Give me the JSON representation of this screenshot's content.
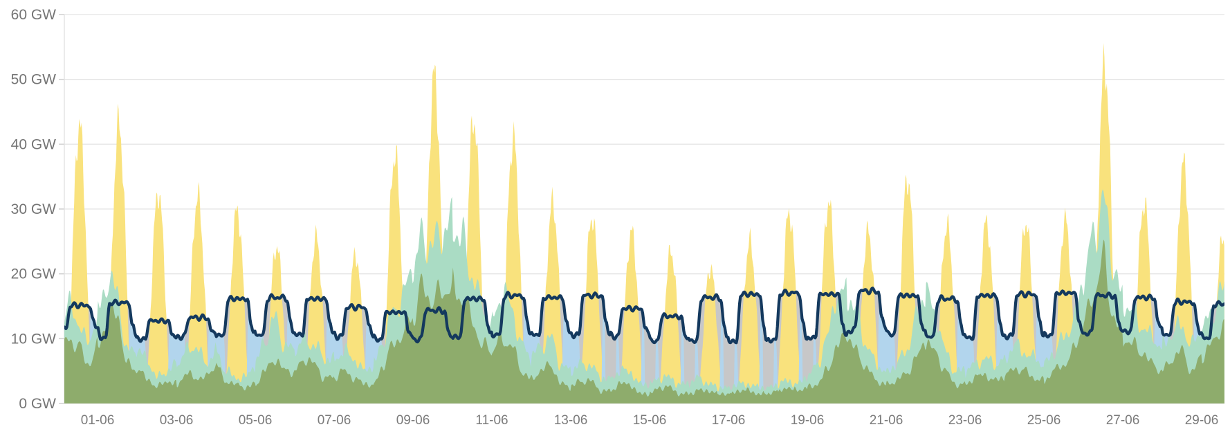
{
  "chart_data": {
    "type": "area",
    "title": "",
    "unit": "GW",
    "ylabel": "",
    "xlabel": "",
    "ylim": [
      0,
      60
    ],
    "grid": "horizontal",
    "legend": "none visible",
    "y_tick_labels": [
      "0 GW",
      "10 GW",
      "20 GW",
      "30 GW",
      "40 GW",
      "50 GW",
      "60 GW"
    ],
    "x_tick_labels": [
      "01-06",
      "03-06",
      "05-06",
      "07-06",
      "09-06",
      "11-06",
      "13-06",
      "15-06",
      "17-06",
      "19-06",
      "21-06",
      "23-06",
      "25-06",
      "27-06",
      "29-06"
    ],
    "x_tick_interval_days": 2,
    "time_span": {
      "start_date": "31-05",
      "start_hour": 4,
      "end_date": "29-06",
      "end_hour": 14
    },
    "series_meta": [
      {
        "id": "yellow_area",
        "desc": "daily solar-shaped bell peaks from 0 GW",
        "color": "#F9E27D"
      },
      {
        "id": "teal_area",
        "desc": "wind-like variable area from 0 GW",
        "color": "#AADCC4"
      },
      {
        "id": "olive_area",
        "desc": "smaller green area drawn in front of teal",
        "color": "#8EAC6C"
      },
      {
        "id": "blue_area",
        "desc": "night-time fill reaching up to the navy line",
        "color": "#B2D5ED"
      },
      {
        "id": "gray_fill",
        "desc": "area under navy line, visible at dawn/dusk and on mid-June nights",
        "color": "#C7C7C8"
      },
      {
        "id": "navy_line",
        "desc": "load-like line, day plateau / night trough",
        "color": "#14395E"
      }
    ],
    "colors": {
      "yellow": "#F9E27D",
      "teal": "#AADCC4",
      "olive": "#8EAC6C",
      "blue": "#B2D5ED",
      "gray": "#C7C7C8",
      "navy": "#14395E",
      "grid": "#E4E4E4",
      "axis": "#E0E0E0",
      "tick": "#CFCFCF",
      "label": "#757575"
    },
    "gray_gap_nights": [
      "13-06",
      "14-06",
      "15-06",
      "16-06",
      "17-06",
      "18-06"
    ],
    "days": [
      {
        "date": "31-05",
        "solar_peak": 43.0,
        "wind": [
          10,
          15,
          13,
          9
        ],
        "green": [
          7,
          10,
          9,
          6
        ],
        "line": [
          11.5,
          15.3
        ]
      },
      {
        "date": "01-06",
        "solar_peak": 43.2,
        "wind": [
          14,
          19,
          17,
          8
        ],
        "green": [
          9,
          13,
          14,
          6
        ],
        "line": [
          10.0,
          15.7
        ]
      },
      {
        "date": "02-06",
        "solar_peak": 32.6,
        "wind": [
          8,
          7,
          4,
          5
        ],
        "green": [
          5,
          4,
          2.5,
          3.5
        ],
        "line": [
          9.7,
          12.9
        ]
      },
      {
        "date": "03-06",
        "solar_peak": 32.0,
        "wind": [
          6,
          8,
          9,
          6
        ],
        "green": [
          3,
          4.5,
          4,
          4
        ],
        "line": [
          10.2,
          13.4
        ]
      },
      {
        "date": "04-06",
        "solar_peak": 29.8,
        "wind": [
          8.5,
          5,
          4,
          4
        ],
        "green": [
          6,
          3.5,
          3,
          2.5
        ],
        "line": [
          10.4,
          16.3
        ]
      },
      {
        "date": "05-06",
        "solar_peak": 24.3,
        "wind": [
          6,
          10,
          13,
          9
        ],
        "green": [
          3,
          5,
          7,
          5
        ],
        "line": [
          10.5,
          16.5
        ]
      },
      {
        "date": "06-06",
        "solar_peak": 25.6,
        "wind": [
          8,
          10,
          9,
          7
        ],
        "green": [
          5,
          7,
          6,
          4
        ],
        "line": [
          10.5,
          16.3
        ]
      },
      {
        "date": "07-06",
        "solar_peak": 23.0,
        "wind": [
          7,
          8,
          7,
          5
        ],
        "green": [
          4,
          5,
          4,
          3
        ],
        "line": [
          10.2,
          15.0
        ]
      },
      {
        "date": "08-06",
        "solar_peak": 38.6,
        "wind": [
          6,
          10,
          14,
          17
        ],
        "green": [
          3,
          6,
          9,
          11
        ],
        "line": [
          9.7,
          14.2
        ]
      },
      {
        "date": "09-06",
        "solar_peak": 50.6,
        "wind": [
          20,
          26,
          24,
          27
        ],
        "green": [
          13,
          18,
          16,
          17
        ],
        "line": [
          9.7,
          14.5
        ]
      },
      {
        "date": "10-06",
        "solar_peak": 44.0,
        "wind": [
          28,
          25,
          20,
          15
        ],
        "green": [
          19,
          16,
          13,
          9
        ],
        "line": [
          10.2,
          16.3
        ]
      },
      {
        "date": "11-06",
        "solar_peak": 41.0,
        "wind": [
          13,
          17,
          15,
          9
        ],
        "green": [
          8,
          10,
          9,
          5
        ],
        "line": [
          10.5,
          16.8
        ]
      },
      {
        "date": "12-06",
        "solar_peak": 31.0,
        "wind": [
          7,
          9,
          10,
          6
        ],
        "green": [
          4,
          5,
          6,
          3
        ],
        "line": [
          10.5,
          16.5
        ]
      },
      {
        "date": "13-06",
        "solar_peak": 28.8,
        "wind": [
          5,
          6,
          6,
          4
        ],
        "green": [
          2.5,
          3.5,
          3.5,
          2
        ],
        "line": [
          10.4,
          16.8
        ]
      },
      {
        "date": "14-06",
        "solar_peak": 26.5,
        "wind": [
          4,
          5,
          5,
          3
        ],
        "green": [
          2,
          3,
          3,
          1.5
        ],
        "line": [
          10.2,
          14.8
        ]
      },
      {
        "date": "15-06",
        "solar_peak": 23.5,
        "wind": [
          3,
          4,
          4,
          3
        ],
        "green": [
          1.5,
          2.5,
          2.5,
          1.5
        ],
        "line": [
          9.4,
          13.6
        ]
      },
      {
        "date": "16-06",
        "solar_peak": 21.0,
        "wind": [
          3,
          4,
          3,
          2.5
        ],
        "green": [
          1.5,
          2,
          2,
          1.5
        ],
        "line": [
          9.6,
          16.5
        ]
      },
      {
        "date": "17-06",
        "solar_peak": 25.0,
        "wind": [
          2.5,
          3,
          3,
          2.5
        ],
        "green": [
          1.5,
          2,
          2,
          1.5
        ],
        "line": [
          9.4,
          17.0
        ]
      },
      {
        "date": "18-06",
        "solar_peak": 29.5,
        "wind": [
          2.5,
          3,
          3.5,
          3
        ],
        "green": [
          1.5,
          2,
          2.5,
          2
        ],
        "line": [
          9.7,
          17.2
        ]
      },
      {
        "date": "19-06",
        "solar_peak": 31.0,
        "wind": [
          4,
          6,
          10,
          17
        ],
        "green": [
          2.5,
          3,
          5,
          9
        ],
        "line": [
          10.0,
          17.0
        ]
      },
      {
        "date": "20-06",
        "solar_peak": 26.5,
        "wind": [
          17,
          14,
          9,
          6
        ],
        "green": [
          10,
          8,
          5.5,
          3.5
        ],
        "line": [
          11.2,
          17.5
        ]
      },
      {
        "date": "21-06",
        "solar_peak": 34.8,
        "wind": [
          5,
          6,
          8,
          13
        ],
        "green": [
          3,
          3.5,
          4.5,
          7
        ],
        "line": [
          10.5,
          16.8
        ]
      },
      {
        "date": "22-06",
        "solar_peak": 27.5,
        "wind": [
          17,
          14,
          8,
          5
        ],
        "green": [
          9,
          8,
          5,
          3
        ],
        "line": [
          10.2,
          16.3
        ]
      },
      {
        "date": "23-06",
        "solar_peak": 28.0,
        "wind": [
          5,
          6,
          7,
          6
        ],
        "green": [
          3,
          4,
          4.5,
          3.5
        ],
        "line": [
          10.0,
          16.8
        ]
      },
      {
        "date": "24-06",
        "solar_peak": 28.0,
        "wind": [
          7,
          9,
          8,
          7
        ],
        "green": [
          4,
          5.5,
          5,
          4
        ],
        "line": [
          10.3,
          17.0
        ]
      },
      {
        "date": "25-06",
        "solar_peak": 28.3,
        "wind": [
          6,
          8,
          10,
          13
        ],
        "green": [
          3.5,
          5,
          6,
          8
        ],
        "line": [
          10.4,
          17.2
        ]
      },
      {
        "date": "26-06",
        "solar_peak": 52.4,
        "wind": [
          18,
          26,
          31,
          22
        ],
        "green": [
          12,
          17,
          22,
          14
        ],
        "line": [
          10.7,
          16.8
        ]
      },
      {
        "date": "27-06",
        "solar_peak": 31.0,
        "wind": [
          16,
          14,
          12,
          10
        ],
        "green": [
          10,
          9,
          8,
          6
        ],
        "line": [
          11.0,
          16.5
        ]
      },
      {
        "date": "28-06",
        "solar_peak": 37.0,
        "wind": [
          9,
          11,
          12,
          9
        ],
        "green": [
          5,
          7,
          8,
          5
        ],
        "line": [
          10.4,
          15.8
        ]
      },
      {
        "date": "29-06",
        "solar_peak": 25.6,
        "wind": [
          11,
          14,
          17,
          20
        ],
        "green": [
          7,
          9,
          12,
          13
        ],
        "line": [
          10.0,
          15.5
        ]
      }
    ]
  }
}
